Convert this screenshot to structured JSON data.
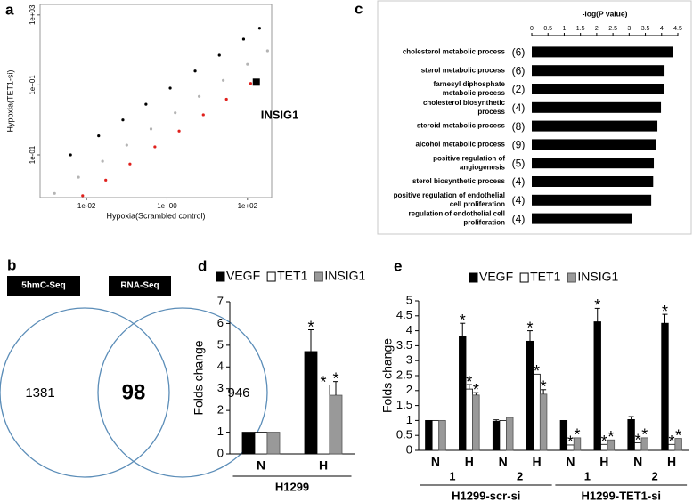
{
  "chart_data": [
    {
      "panel": "a",
      "type": "scatter",
      "xlabel": "Hypoxia(Scrambled control)",
      "ylabel": "Hypoxia(TET1-si)",
      "log_x": true,
      "log_y": true,
      "xlim": [
        0.0007,
        400
      ],
      "ylim": [
        0.006,
        2000
      ],
      "xticks": [
        {
          "value": 0.01,
          "label": "1e-02"
        },
        {
          "value": 1,
          "label": "1e+00"
        },
        {
          "value": 100,
          "label": "1e+02"
        }
      ],
      "yticks": [
        {
          "value": 0.1,
          "label": "1e-01"
        },
        {
          "value": 10,
          "label": "1e+01"
        },
        {
          "value": 1000,
          "label": "1e+03"
        }
      ],
      "series": [
        {
          "color": "#000000",
          "x": [
            0.004,
            0.02,
            0.08,
            0.3,
            1.2,
            5,
            20,
            80,
            200
          ],
          "values": [
            0.1,
            0.35,
            1,
            2.8,
            8.1,
            25,
            71,
            204,
            417
          ]
        },
        {
          "color": "#e0201c",
          "x": [
            0.008,
            0.03,
            0.12,
            0.5,
            2,
            8,
            30,
            120
          ],
          "values": [
            0.0068,
            0.019,
            0.055,
            0.17,
            0.48,
            1.4,
            3.9,
            11
          ]
        },
        {
          "color": "#b4b4b4",
          "x": [
            0.0016,
            0.0063,
            0.025,
            0.1,
            0.4,
            1.6,
            6.3,
            25,
            100,
            316
          ],
          "values": [
            0.0079,
            0.023,
            0.066,
            0.19,
            0.55,
            1.6,
            4.7,
            13.5,
            39,
            95
          ]
        }
      ],
      "annotation": {
        "text": "INSIG1",
        "x": 166,
        "y": 12
      }
    },
    {
      "panel": "b",
      "type": "venn",
      "sets": [
        "5hmC-Seq",
        "RNA-Seq"
      ],
      "values": [
        1381,
        98,
        946
      ]
    },
    {
      "panel": "c",
      "type": "bar",
      "orientation": "horizontal",
      "xlabel": "-log(P value)",
      "xlim": [
        0,
        4.5
      ],
      "xticks": [
        0,
        0.5,
        1,
        1.5,
        2,
        2.5,
        3,
        3.5,
        4,
        4.5
      ],
      "color": "#000000",
      "categories": [
        [
          "cholesterol metabolic process"
        ],
        [
          "sterol metabolic process"
        ],
        [
          "farnesyl diphosphate",
          "metabolic process"
        ],
        [
          "cholesterol biosynthetic",
          "process"
        ],
        [
          "steroid metabolic process"
        ],
        [
          "alcohol metabolic process"
        ],
        [
          "positive regulation of",
          "angiogenesis"
        ],
        [
          "sterol biosynthetic process"
        ],
        [
          "positive regulation of endothelial",
          "cell proliferation"
        ],
        [
          "regulation of endothelial cell",
          "proliferation"
        ]
      ],
      "counts": [
        "(6)",
        "(6)",
        "(2)",
        "(4)",
        "(8)",
        "(9)",
        "(5)",
        "(4)",
        "(4)",
        "(4)"
      ],
      "values": [
        4.34,
        4.09,
        4.07,
        3.98,
        3.87,
        3.82,
        3.76,
        3.74,
        3.68,
        3.1
      ]
    },
    {
      "panel": "d",
      "type": "bar",
      "orientation": "vertical",
      "ylabel": "Folds change",
      "ylim": [
        0,
        7
      ],
      "yticks": [
        0,
        1,
        2,
        3,
        4,
        5,
        6,
        7
      ],
      "groups": [
        {
          "label": "H1299",
          "categories": [
            "N",
            "H"
          ]
        }
      ],
      "series": [
        {
          "name": "VEGF",
          "color": "#000000",
          "edgecolor": "#000000",
          "values": [
            1,
            4.71
          ],
          "errors": [
            null,
            1.0
          ],
          "markers": [
            null,
            "*"
          ]
        },
        {
          "name": "TET1",
          "color": "#ffffff",
          "edgecolor": "#000000",
          "values": [
            1,
            3.17
          ],
          "errors": [
            null,
            null
          ],
          "markers": [
            null,
            "*"
          ]
        },
        {
          "name": "INSIG1",
          "color": "#999999",
          "edgecolor": "#555555",
          "values": [
            1,
            2.7
          ],
          "errors": [
            null,
            0.63
          ],
          "markers": [
            null,
            "*"
          ]
        }
      ]
    },
    {
      "panel": "e",
      "type": "bar",
      "orientation": "vertical",
      "ylabel": "Folds change",
      "ylim": [
        0,
        5
      ],
      "yticks": [
        0,
        0.5,
        1,
        1.5,
        2,
        2.5,
        3,
        3.5,
        4,
        4.5,
        5
      ],
      "groups": [
        {
          "label": "H1299-scr-si",
          "subgroups": [
            {
              "label": "1",
              "categories": [
                "N",
                "H"
              ]
            },
            {
              "label": "2",
              "categories": [
                "N",
                "H"
              ]
            }
          ]
        },
        {
          "label": "H1299-TET1-si",
          "subgroups": [
            {
              "label": "1",
              "categories": [
                "N",
                "H"
              ]
            },
            {
              "label": "2",
              "categories": [
                "N",
                "H"
              ]
            }
          ]
        }
      ],
      "series": [
        {
          "name": "VEGF",
          "color": "#000000",
          "edgecolor": "#000000",
          "values": [
            1,
            3.8,
            0.97,
            3.65,
            1.0,
            4.3,
            1.03,
            4.25
          ],
          "errors": [
            null,
            0.45,
            0.05,
            0.35,
            null,
            0.45,
            0.1,
            0.3
          ],
          "markers": [
            null,
            "*",
            null,
            "*",
            null,
            "*",
            null,
            "*"
          ]
        },
        {
          "name": "TET1",
          "color": "#ffffff",
          "edgecolor": "#000000",
          "values": [
            1,
            2.05,
            1,
            2.55,
            0.18,
            0.2,
            0.25,
            0.2
          ],
          "errors": [
            null,
            0.15,
            null,
            null,
            null,
            null,
            null,
            null
          ],
          "markers": [
            null,
            "*",
            null,
            "*",
            "*",
            "*",
            "*",
            "*"
          ]
        },
        {
          "name": "INSIG1",
          "color": "#999999",
          "edgecolor": "#555555",
          "values": [
            1,
            1.85,
            1.1,
            1.88,
            0.42,
            0.35,
            0.42,
            0.4
          ],
          "errors": [
            null,
            0.08,
            null,
            0.15,
            null,
            null,
            null,
            null
          ],
          "markers": [
            null,
            "*",
            null,
            "*",
            "*",
            "*",
            "*",
            "*"
          ]
        }
      ]
    }
  ]
}
